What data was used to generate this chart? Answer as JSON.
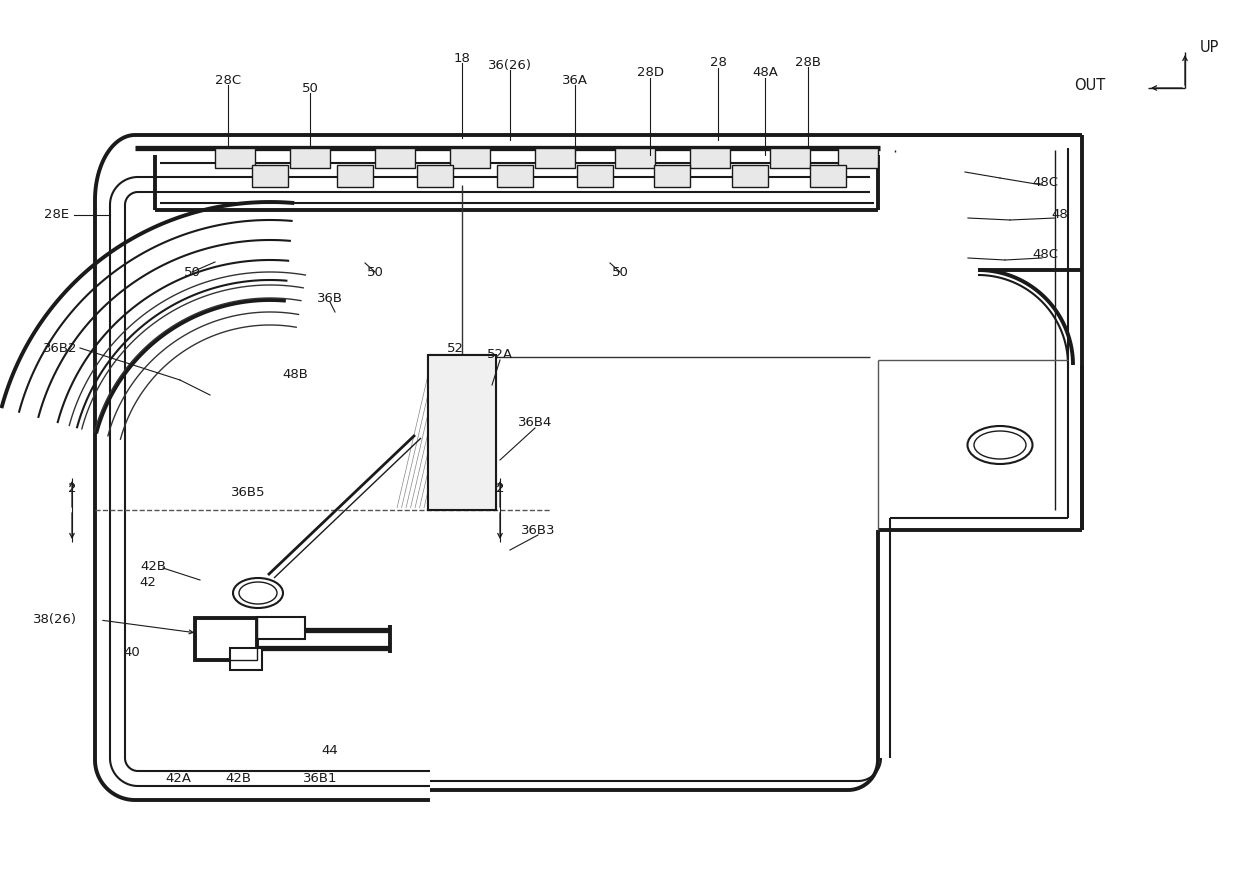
{
  "bg_color": "#ffffff",
  "line_color": "#1a1a1a",
  "fig_width": 12.4,
  "fig_height": 8.69,
  "dpi": 100,
  "xlim": [
    0,
    1240
  ],
  "ylim": [
    869,
    0
  ]
}
